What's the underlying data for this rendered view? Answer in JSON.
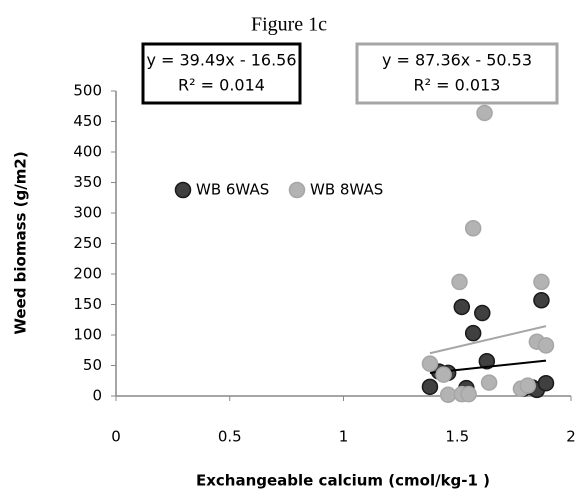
{
  "chart_data": {
    "type": "scatter",
    "title": "Figure 1c",
    "x_label": "Exchangeable calcium (cmol/kg-1 )",
    "y_label": "Weed biomass (g/m2)",
    "xlim": [
      0,
      2
    ],
    "xticks": [
      0,
      0.5,
      1,
      1.5,
      2
    ],
    "ylim": [
      0,
      500
    ],
    "yticks": [
      0,
      50,
      100,
      150,
      200,
      250,
      300,
      350,
      400,
      450,
      500
    ],
    "grid": false,
    "series": [
      {
        "name": "WB 6WAS",
        "color": "#404040",
        "edge": "#1a1a1a",
        "x": [
          1.38,
          1.42,
          1.46,
          1.52,
          1.54,
          1.57,
          1.61,
          1.63,
          1.79,
          1.83,
          1.85,
          1.87,
          1.89
        ],
        "y": [
          15,
          40,
          38,
          146,
          13,
          103,
          136,
          57,
          12,
          14,
          10,
          157,
          21
        ],
        "trendline": {
          "slope": 39.49,
          "intercept": -16.56,
          "color": "#000000",
          "equation": "y = 39.49x - 16.56",
          "r2_label": "R² = 0.014"
        }
      },
      {
        "name": "WB 8WAS",
        "color": "#b3b3b3",
        "edge": "#a6a6a6",
        "x": [
          1.38,
          1.44,
          1.46,
          1.51,
          1.52,
          1.55,
          1.57,
          1.62,
          1.64,
          1.78,
          1.81,
          1.85,
          1.87,
          1.89
        ],
        "y": [
          53,
          35,
          2,
          187,
          3,
          3,
          275,
          464,
          22,
          12,
          17,
          89,
          187,
          83
        ],
        "trendline": {
          "slope": 87.36,
          "intercept": -50.53,
          "color": "#a6a6a6",
          "equation": "y = 87.36x - 50.53",
          "r2_label": "R² = 0.013"
        }
      }
    ]
  }
}
